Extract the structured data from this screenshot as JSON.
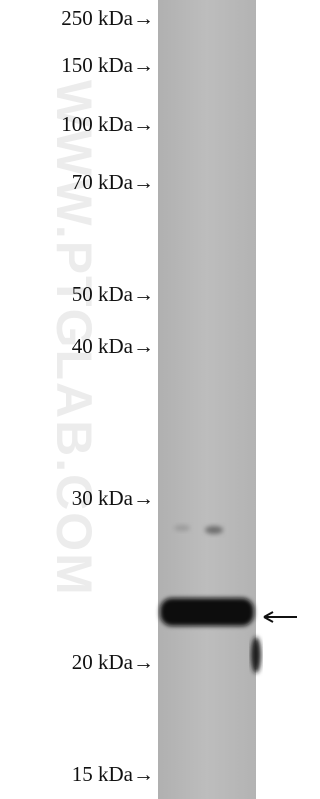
{
  "markers": [
    "250 kDa→",
    "150 kDa→",
    "100 kDa→",
    "70 kDa→",
    "50 kDa→",
    "40 kDa→",
    "30 kDa→",
    "20 kDa→",
    "15 kDa→"
  ],
  "watermark": "WWW.PTGLAB.COM"
}
